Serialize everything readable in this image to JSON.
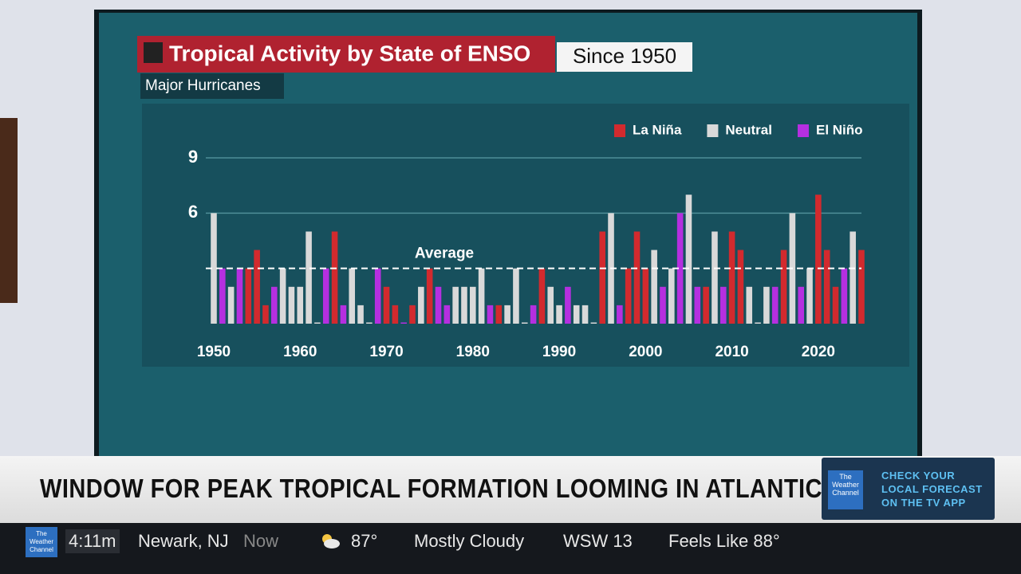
{
  "chart_data": {
    "type": "bar",
    "title": "Tropical Activity by State of ENSO",
    "subtitle": "Since 1950",
    "y_label": "Major Hurricanes",
    "x": [
      1950,
      1951,
      1952,
      1953,
      1954,
      1955,
      1956,
      1957,
      1958,
      1959,
      1960,
      1961,
      1962,
      1963,
      1964,
      1965,
      1966,
      1967,
      1968,
      1969,
      1970,
      1971,
      1972,
      1973,
      1974,
      1975,
      1976,
      1977,
      1978,
      1979,
      1980,
      1981,
      1982,
      1983,
      1984,
      1985,
      1986,
      1987,
      1988,
      1989,
      1990,
      1991,
      1992,
      1993,
      1994,
      1995,
      1996,
      1997,
      1998,
      1999,
      2000,
      2001,
      2002,
      2003,
      2004,
      2005,
      2006,
      2007,
      2008,
      2009,
      2010,
      2011,
      2012,
      2013,
      2014,
      2015,
      2016,
      2017,
      2018,
      2019,
      2020,
      2021,
      2022,
      2023,
      2024,
      2025
    ],
    "series": [
      {
        "name": "La Niña",
        "color": "#d22a2e",
        "values": [
          null,
          null,
          null,
          null,
          3,
          4,
          1,
          null,
          null,
          null,
          null,
          null,
          null,
          null,
          5,
          null,
          null,
          null,
          null,
          null,
          2,
          1,
          null,
          1,
          null,
          3,
          null,
          null,
          null,
          null,
          null,
          null,
          null,
          1,
          null,
          null,
          null,
          null,
          3,
          null,
          null,
          null,
          null,
          null,
          null,
          5,
          null,
          null,
          3,
          5,
          3,
          null,
          null,
          null,
          null,
          null,
          null,
          2,
          null,
          null,
          5,
          4,
          null,
          null,
          null,
          null,
          4,
          null,
          null,
          null,
          7,
          4,
          2,
          null,
          null,
          4
        ]
      },
      {
        "name": "Neutral",
        "color": "#d9d9d9",
        "values": [
          6,
          null,
          2,
          null,
          null,
          null,
          null,
          null,
          3,
          2,
          2,
          5,
          0,
          null,
          null,
          null,
          3,
          1,
          0,
          null,
          null,
          null,
          null,
          null,
          2,
          null,
          null,
          null,
          2,
          2,
          2,
          3,
          null,
          null,
          1,
          3,
          0,
          null,
          null,
          2,
          1,
          null,
          1,
          1,
          0,
          null,
          6,
          null,
          null,
          null,
          null,
          4,
          null,
          3,
          null,
          7,
          null,
          null,
          5,
          null,
          null,
          null,
          2,
          0,
          2,
          null,
          null,
          6,
          null,
          3,
          null,
          null,
          null,
          null,
          5,
          null
        ]
      },
      {
        "name": "El Niño",
        "color": "#b52fe0",
        "values": [
          null,
          3,
          null,
          3,
          null,
          null,
          null,
          2,
          null,
          null,
          null,
          null,
          null,
          3,
          null,
          1,
          null,
          null,
          null,
          3,
          null,
          null,
          0,
          null,
          null,
          null,
          2,
          1,
          null,
          null,
          null,
          null,
          1,
          null,
          null,
          null,
          null,
          1,
          null,
          null,
          null,
          2,
          null,
          null,
          null,
          null,
          null,
          1,
          null,
          null,
          null,
          null,
          2,
          null,
          6,
          null,
          2,
          null,
          null,
          2,
          null,
          null,
          null,
          null,
          null,
          2,
          null,
          null,
          2,
          null,
          null,
          null,
          null,
          3,
          null,
          null
        ]
      }
    ],
    "xlim": [
      1950,
      2025
    ],
    "xticks": [
      1950,
      1960,
      1970,
      1980,
      1990,
      2000,
      2010,
      2020
    ],
    "ylim": [
      0,
      9
    ],
    "yticks": [
      6,
      9
    ],
    "grid": true,
    "legend": "upper right",
    "average_line": {
      "label": "Average",
      "value": 3
    }
  },
  "broadcast": {
    "headline": "WINDOW FOR PEAK TROPICAL FORMATION LOOMING IN ATLANTIC",
    "promo": [
      "CHECK YOUR",
      "LOCAL FORECAST",
      "ON THE TV APP"
    ],
    "logo": [
      "The",
      "Weather",
      "Channel"
    ],
    "ticker": {
      "time": "4:11m",
      "location": "Newark, NJ",
      "now": "Now",
      "temp": "87°",
      "condition": "Mostly Cloudy",
      "wind": "WSW 13",
      "feels_like": "Feels Like 88°"
    }
  }
}
